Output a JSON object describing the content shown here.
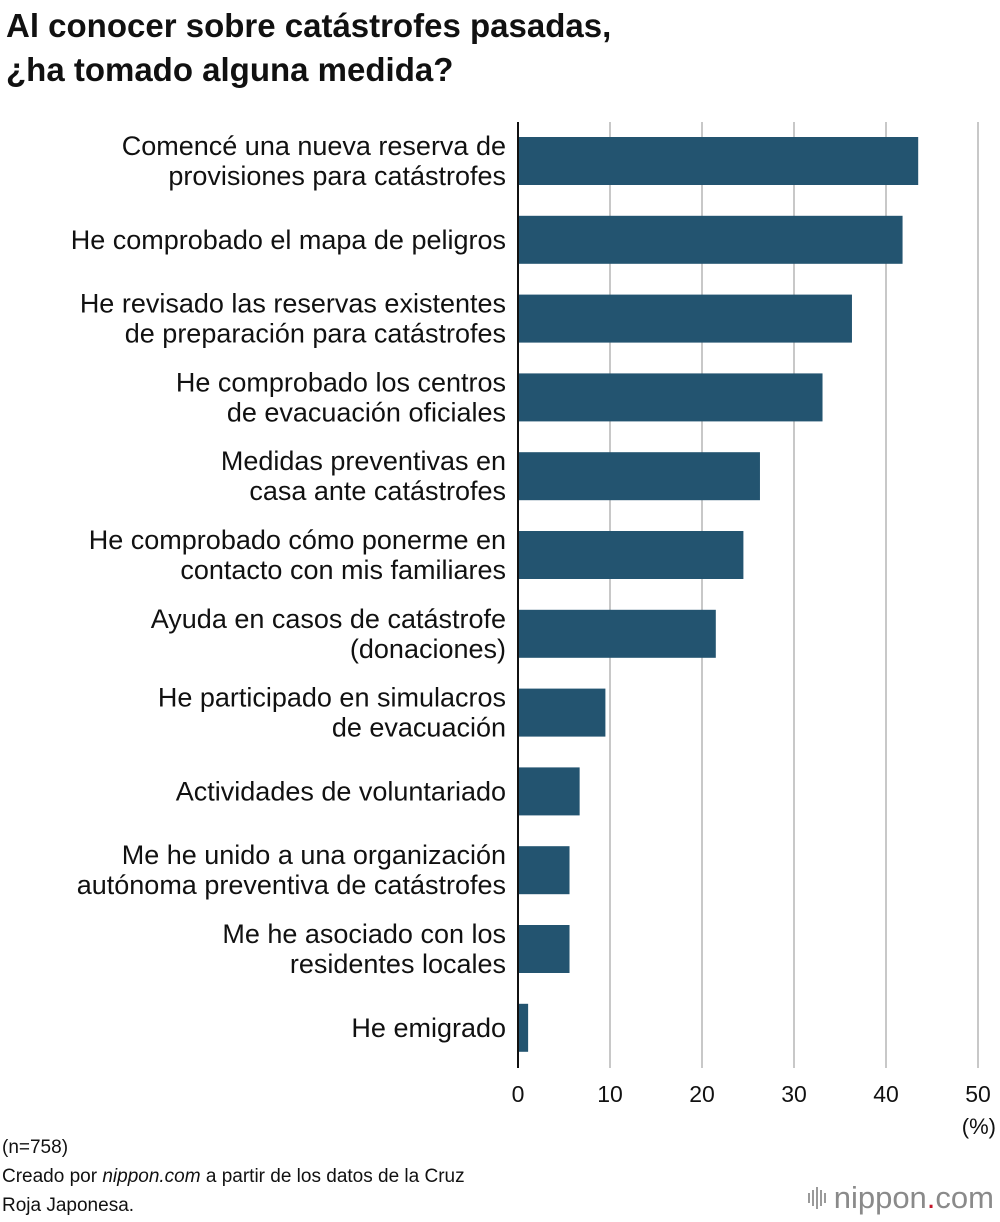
{
  "title_lines": [
    "Al conocer sobre catástrofes pasadas,",
    "¿ha tomado alguna medida?"
  ],
  "chart_data": {
    "type": "bar",
    "orientation": "horizontal",
    "title": "Al conocer sobre catástrofes pasadas, ¿ha tomado alguna medida?",
    "categories": [
      [
        "Comencé una nueva reserva de",
        "provisiones para catástrofes"
      ],
      [
        "He comprobado el mapa de peligros"
      ],
      [
        "He revisado las reservas existentes",
        "de preparación para catástrofes"
      ],
      [
        "He comprobado los centros",
        "de evacuación oficiales"
      ],
      [
        "Medidas preventivas en",
        "casa ante catástrofes"
      ],
      [
        "He comprobado cómo ponerme en",
        "contacto con mis familiares"
      ],
      [
        "Ayuda en casos de catástrofe",
        "(donaciones)"
      ],
      [
        "He participado en simulacros",
        "de evacuación"
      ],
      [
        "Actividades de voluntariado"
      ],
      [
        "Me he unido a una organización",
        "autónoma preventiva de catástrofes"
      ],
      [
        "Me he asociado con los",
        "residentes locales"
      ],
      [
        "He emigrado"
      ]
    ],
    "values": [
      43.5,
      41.8,
      36.3,
      33.1,
      26.3,
      24.5,
      21.5,
      9.5,
      6.7,
      5.6,
      5.6,
      1.1
    ],
    "xlim": [
      0,
      50
    ],
    "xticks": [
      "0",
      "10",
      "20",
      "30",
      "40",
      "50"
    ],
    "xunit": "(%)",
    "grid": true,
    "bar_color": "#235470"
  },
  "footer": {
    "sample": "(n=758)",
    "source_prefix": "Creado por ",
    "source_site": "nippon.com",
    "source_suffix": " a partir de los datos de la Cruz",
    "source_line2": "Roja Japonesa."
  },
  "brand": {
    "name": "nippon",
    "dot": ".",
    "tld": "com",
    "icon": "sound-bars-icon"
  }
}
